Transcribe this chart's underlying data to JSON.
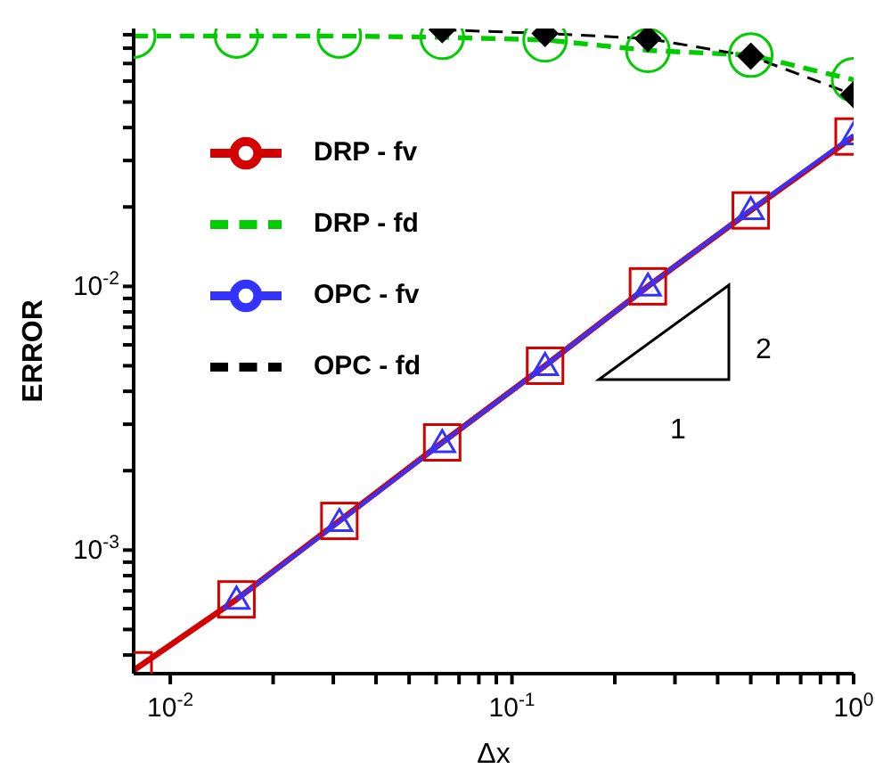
{
  "chart_data": {
    "type": "line",
    "xlabel": "Δx",
    "ylabel": "ERROR",
    "log": "xy",
    "legend": "top left",
    "grid": false,
    "annotations": [
      "2",
      "1"
    ],
    "xlim": [
      0.0078125,
      1
    ],
    "xticks": [
      {
        "value": 0.01,
        "label": "10$^{-2}$"
      },
      {
        "value": 0.02,
        "label": null
      },
      {
        "value": 0.03,
        "label": null
      },
      {
        "value": 0.04,
        "label": null
      },
      {
        "value": 0.05,
        "label": null
      },
      {
        "value": 0.06,
        "label": null
      },
      {
        "value": 0.07,
        "label": null
      },
      {
        "value": 0.08,
        "label": null
      },
      {
        "value": 0.09,
        "label": null
      },
      {
        "value": 0.1,
        "label": "10$^{-1}$"
      },
      {
        "value": 0.2,
        "label": null
      },
      {
        "value": 0.3,
        "label": null
      },
      {
        "value": 0.4,
        "label": null
      },
      {
        "value": 0.5,
        "label": null
      },
      {
        "value": 0.6,
        "label": null
      },
      {
        "value": 0.7,
        "label": null
      },
      {
        "value": 0.8,
        "label": null
      },
      {
        "value": 0.9,
        "label": null
      },
      {
        "value": 1,
        "label": "10$^{0}$"
      }
    ],
    "ylim": [
      0.00034,
      0.095
    ],
    "yticks": [
      {
        "value": 0.0004,
        "label": null
      },
      {
        "value": 0.0005,
        "label": null
      },
      {
        "value": 0.0006,
        "label": null
      },
      {
        "value": 0.0007,
        "label": null
      },
      {
        "value": 0.0008,
        "label": null
      },
      {
        "value": 0.0009,
        "label": null
      },
      {
        "value": 0.001,
        "label": "10$^{-3}$"
      },
      {
        "value": 0.002,
        "label": null
      },
      {
        "value": 0.003,
        "label": null
      },
      {
        "value": 0.004,
        "label": null
      },
      {
        "value": 0.005,
        "label": null
      },
      {
        "value": 0.006,
        "label": null
      },
      {
        "value": 0.007,
        "label": null
      },
      {
        "value": 0.008,
        "label": null
      },
      {
        "value": 0.009,
        "label": null
      },
      {
        "value": 0.01,
        "label": "10$^{-2}$"
      },
      {
        "value": 0.02,
        "label": null
      },
      {
        "value": 0.03,
        "label": null
      },
      {
        "value": 0.04,
        "label": null
      },
      {
        "value": 0.05,
        "label": null
      },
      {
        "value": 0.06,
        "label": null
      },
      {
        "value": 0.07,
        "label": null
      },
      {
        "value": 0.08,
        "label": null
      },
      {
        "value": 0.09,
        "label": null
      }
    ],
    "series": [
      {
        "name": "DRP - fv",
        "color": "#d40000",
        "marker": "square",
        "line_style": "solid",
        "x": [
          0.0078125,
          0.015625,
          0.03125,
          0.0625,
          0.125,
          0.25,
          0.5,
          1
        ],
        "values": [
          0.00035,
          0.00065,
          0.00129,
          0.00256,
          0.005,
          0.01,
          0.0194,
          0.037
        ]
      },
      {
        "name": "DRP - fd",
        "color": "#00cc00",
        "marker": "circle",
        "line_style": "dashed",
        "x": [
          0.0078125,
          0.015625,
          0.03125,
          0.0625,
          0.125,
          0.25,
          0.5,
          1
        ],
        "values": [
          0.089,
          0.089,
          0.089,
          0.088,
          0.086,
          0.0785,
          0.0753,
          0.0607
        ]
      },
      {
        "name": "OPC - fv",
        "color": "#3333ff",
        "marker": "triangle",
        "line_style": "solid",
        "x": [
          0.015625,
          0.03125,
          0.0625,
          0.125,
          0.25,
          0.5,
          1
        ],
        "values": [
          0.00065,
          0.00128,
          0.00255,
          0.005,
          0.01,
          0.0195,
          0.0375
        ]
      },
      {
        "name": "OPC - fd",
        "color": "#000000",
        "marker": "diamond",
        "line_style": "dashed",
        "x": [
          0.0625,
          0.125,
          0.25,
          0.5,
          1
        ],
        "values": [
          0.094,
          0.091,
          0.087,
          0.0746,
          0.0533
        ]
      }
    ]
  }
}
